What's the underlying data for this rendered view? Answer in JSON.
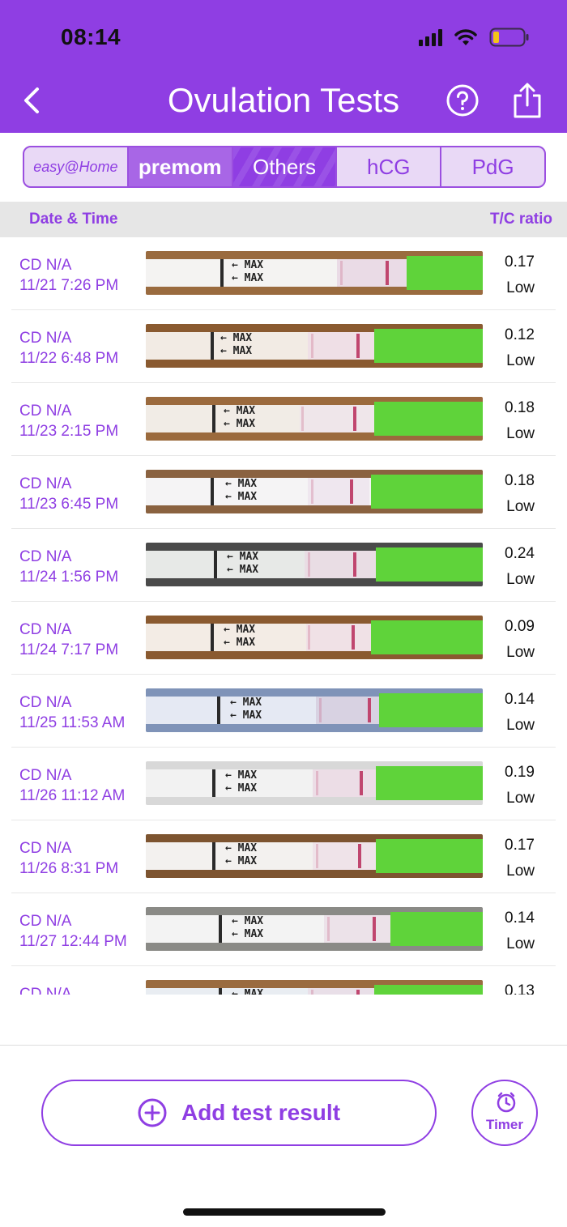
{
  "status_bar": {
    "time": "08:14"
  },
  "header": {
    "title": "Ovulation Tests",
    "back_icon": "chevron-left-icon",
    "help_icon": "question-circle-icon",
    "share_icon": "share-icon"
  },
  "tabs": [
    {
      "label": "easy@Home",
      "active": false
    },
    {
      "label": "premom",
      "active": false
    },
    {
      "label": "Others",
      "active": true
    },
    {
      "label": "hCG",
      "active": false
    },
    {
      "label": "PdG",
      "active": false
    }
  ],
  "columns": {
    "date_time": "Date & Time",
    "tc_ratio": "T/C ratio"
  },
  "strip_text": "MAX",
  "rows": [
    {
      "cd": "CD N/A",
      "datetime": "11/21 7:26 PM",
      "ratio": "0.17",
      "level": "Low"
    },
    {
      "cd": "CD N/A",
      "datetime": "11/22 6:48 PM",
      "ratio": "0.12",
      "level": "Low"
    },
    {
      "cd": "CD N/A",
      "datetime": "11/23 2:15 PM",
      "ratio": "0.18",
      "level": "Low"
    },
    {
      "cd": "CD N/A",
      "datetime": "11/23 6:45 PM",
      "ratio": "0.18",
      "level": "Low"
    },
    {
      "cd": "CD N/A",
      "datetime": "11/24 1:56 PM",
      "ratio": "0.24",
      "level": "Low"
    },
    {
      "cd": "CD N/A",
      "datetime": "11/24 7:17 PM",
      "ratio": "0.09",
      "level": "Low"
    },
    {
      "cd": "CD N/A",
      "datetime": "11/25 11:53 AM",
      "ratio": "0.14",
      "level": "Low"
    },
    {
      "cd": "CD N/A",
      "datetime": "11/26 11:12 AM",
      "ratio": "0.19",
      "level": "Low"
    },
    {
      "cd": "CD N/A",
      "datetime": "11/26 8:31 PM",
      "ratio": "0.17",
      "level": "Low"
    },
    {
      "cd": "CD N/A",
      "datetime": "11/27 12:44 PM",
      "ratio": "0.14",
      "level": "Low"
    },
    {
      "cd": "CD N/A",
      "datetime": "",
      "ratio": "0.13",
      "level": ""
    }
  ],
  "actions": {
    "add_label": "Add test result",
    "add_icon": "plus-circle-icon",
    "timer_label": "Timer",
    "timer_icon": "stopwatch-icon"
  },
  "colors": {
    "accent": "#8f3ee3",
    "strip_handle": "#5fd33a",
    "test_line": "#c0466f"
  }
}
